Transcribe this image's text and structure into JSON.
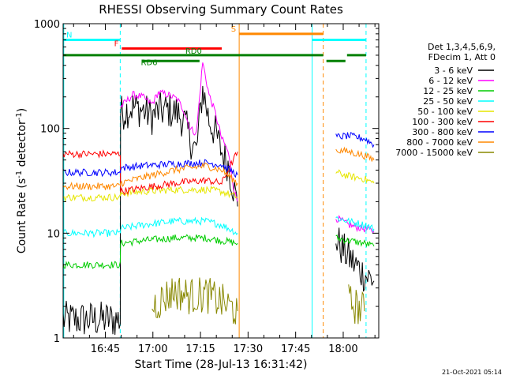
{
  "chart_data": {
    "type": "line",
    "title": "RHESSI Observing Summary Count Rates",
    "xlabel": "Start Time (28-Jul-13 16:31:42)",
    "ylabel_main": "Count Rate (s",
    "ylabel_sup1": "-1",
    "ylabel_mid": " detector",
    "ylabel_sup2": "-1",
    "ylabel_end": ")",
    "y_scale": "log",
    "ylim": [
      1,
      1000
    ],
    "xlim_minutes": [
      0,
      99.5
    ],
    "x_ticks": [
      {
        "label": "16:45",
        "minutes": 13.3
      },
      {
        "label": "17:00",
        "minutes": 28.3
      },
      {
        "label": "17:15",
        "minutes": 43.3
      },
      {
        "label": "17:30",
        "minutes": 58.3
      },
      {
        "label": "17:45",
        "minutes": 73.3
      },
      {
        "label": "18:00",
        "minutes": 88.3
      }
    ],
    "y_ticks": [
      {
        "label": "1",
        "value": 1
      },
      {
        "label": "10",
        "value": 10
      },
      {
        "label": "100",
        "value": 100
      },
      {
        "label": "1000",
        "value": 1000
      }
    ],
    "legend_header": [
      "Det 1,3,4,5,6,9,",
      "FDecim 1, Att 0"
    ],
    "series": [
      {
        "name": "3 - 6 keV",
        "color": "#000000",
        "x": [
          0,
          18,
          18.1,
          22,
          25,
          28,
          30,
          33,
          36,
          38,
          40,
          42,
          44,
          46,
          48,
          50,
          52,
          54,
          55,
          85,
          86,
          88,
          90,
          92,
          95,
          98
        ],
        "y": [
          1.5,
          1.5,
          140,
          160,
          150,
          130,
          145,
          150,
          140,
          120,
          80,
          60,
          240,
          120,
          90,
          60,
          45,
          25,
          18,
          null,
          9,
          7,
          6,
          5,
          4,
          3.5
        ]
      },
      {
        "name": "6 - 12 keV",
        "color": "#ff00ff",
        "x": [
          18.1,
          22,
          25,
          28,
          30,
          33,
          36,
          38,
          40,
          42,
          44,
          46,
          48,
          50,
          52,
          54,
          55,
          85,
          86,
          88,
          90,
          92,
          95,
          98
        ],
        "y": [
          160,
          210,
          200,
          170,
          220,
          210,
          190,
          150,
          100,
          90,
          430,
          210,
          140,
          80,
          60,
          25,
          20,
          null,
          14,
          13,
          12,
          11.5,
          11,
          10.5
        ]
      },
      {
        "name": "12 - 25 keV",
        "color": "#00cc00",
        "x": [
          0,
          18,
          18.1,
          25,
          35,
          45,
          50,
          55,
          85,
          86,
          90,
          95,
          98
        ],
        "y": [
          5,
          5,
          8,
          8.5,
          9,
          9,
          8.5,
          8,
          null,
          9,
          8.5,
          8,
          7.5
        ]
      },
      {
        "name": "25 - 50 keV",
        "color": "#00ffff",
        "x": [
          0,
          18,
          18.1,
          25,
          35,
          45,
          50,
          55,
          85,
          86,
          90,
          95,
          98
        ],
        "y": [
          10,
          10,
          11,
          12,
          13,
          13,
          12,
          10,
          null,
          14,
          13,
          12,
          11
        ]
      },
      {
        "name": "50 - 100 keV",
        "color": "#e6e600",
        "x": [
          0,
          18,
          18.1,
          25,
          35,
          45,
          50,
          55,
          85,
          86,
          90,
          95,
          98
        ],
        "y": [
          22,
          22,
          24,
          25,
          26,
          26,
          25,
          22,
          null,
          38,
          35,
          33,
          30
        ]
      },
      {
        "name": "100 - 300 keV",
        "color": "#ff0000",
        "x": [
          0,
          18,
          18.1,
          25,
          35,
          45,
          50,
          55
        ],
        "y": [
          57,
          57,
          25,
          27,
          30,
          32,
          30,
          60
        ]
      },
      {
        "name": "300 - 800 keV",
        "color": "#0000ff",
        "x": [
          0,
          18,
          18.1,
          25,
          35,
          45,
          50,
          55,
          85,
          86,
          90,
          95,
          98
        ],
        "y": [
          38,
          38,
          42,
          44,
          46,
          47,
          45,
          36,
          null,
          83,
          85,
          80,
          70
        ]
      },
      {
        "name": "800 - 7000 keV",
        "color": "#ff8800",
        "x": [
          0,
          18,
          18.1,
          25,
          35,
          45,
          50,
          55,
          85,
          86,
          90,
          95,
          98
        ],
        "y": [
          28,
          28,
          30,
          34,
          40,
          44,
          40,
          30,
          null,
          62,
          60,
          55,
          50
        ]
      },
      {
        "name": "7000 - 15000 keV",
        "color": "#888800",
        "x": [
          28,
          35,
          40,
          45,
          50,
          55,
          85,
          90,
          95
        ],
        "y": [
          2,
          2.8,
          2.5,
          2.6,
          2.2,
          1.8,
          null,
          2.2,
          1.8
        ]
      }
    ],
    "vertical_markers": [
      {
        "minutes": 0.2,
        "style": "solid",
        "color": "#00ffff"
      },
      {
        "minutes": 18,
        "style": "dashed",
        "color": "#00ffff"
      },
      {
        "minutes": 55.5,
        "style": "solid",
        "color": "#ff8800"
      },
      {
        "minutes": 78.5,
        "style": "solid",
        "color": "#00ffff"
      },
      {
        "minutes": 82,
        "style": "dashed",
        "color": "#ff8800"
      },
      {
        "minutes": 95.5,
        "style": "dashed",
        "color": "#00ffff"
      }
    ],
    "flag_bars": [
      {
        "label": "N",
        "color": "#00ffff",
        "x0": 0,
        "x1": 18,
        "y": 700
      },
      {
        "label": "",
        "color": "#00ffff",
        "x0": 78.5,
        "x1": 95.5,
        "y": 700
      },
      {
        "label": "S",
        "color": "#ff8800",
        "x0": 55.5,
        "x1": 82,
        "y": 800
      },
      {
        "label": "F",
        "color": "#ff0000",
        "x0": 18.5,
        "x1": 50,
        "y": 580
      },
      {
        "label": "RD0",
        "color": "#008000",
        "x0": 0,
        "x1": 82,
        "y": 500
      },
      {
        "label": "",
        "color": "#008000",
        "x0": 83,
        "x1": 89,
        "y": 440
      },
      {
        "label": "",
        "color": "#008000",
        "x0": 89.5,
        "x1": 95.5,
        "y": 500
      },
      {
        "label": "RD6",
        "color": "#008000",
        "x0": 25,
        "x1": 43,
        "y": 440
      }
    ],
    "timestamp": "21-Oct-2021 05:14"
  }
}
